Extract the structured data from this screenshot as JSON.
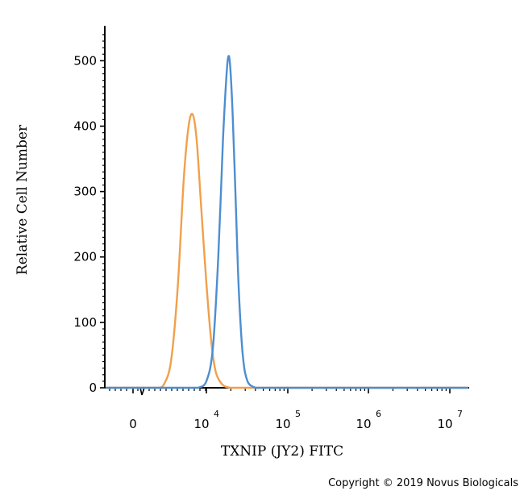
{
  "chart_data": {
    "type": "line",
    "title": "",
    "xlabel": "TXNIP (JY2) FITC",
    "ylabel": "Relative Cell Number",
    "x_scale": "biexponential",
    "ylim": [
      0,
      540
    ],
    "yticks": [
      0,
      100,
      200,
      300,
      400,
      500
    ],
    "xticks": [
      {
        "base": "0",
        "exp": ""
      },
      {
        "base": "10",
        "exp": "4"
      },
      {
        "base": "10",
        "exp": "5"
      },
      {
        "base": "10",
        "exp": "6"
      },
      {
        "base": "10",
        "exp": "7"
      }
    ],
    "grid": false,
    "legend": "none",
    "series": [
      {
        "color": "#f0a04b",
        "x": [
          2300,
          3000,
          4000,
          5000,
          6000,
          6800,
          7500,
          8200,
          9000,
          10000,
          11500,
          13000,
          15000,
          17000,
          20000
        ],
        "y": [
          0,
          5,
          40,
          150,
          320,
          400,
          418,
          380,
          280,
          160,
          70,
          25,
          8,
          2,
          0
        ]
      },
      {
        "color": "#4d8ed0",
        "x": [
          8500,
          10000,
          12000,
          14000,
          16000,
          17500,
          18500,
          19500,
          21000,
          23000,
          25000,
          28000,
          32000,
          40000
        ],
        "y": [
          0,
          10,
          60,
          200,
          380,
          470,
          505,
          495,
          420,
          280,
          150,
          50,
          10,
          0
        ]
      }
    ]
  },
  "copyright": "Copyright © 2019 Novus Biologicals"
}
